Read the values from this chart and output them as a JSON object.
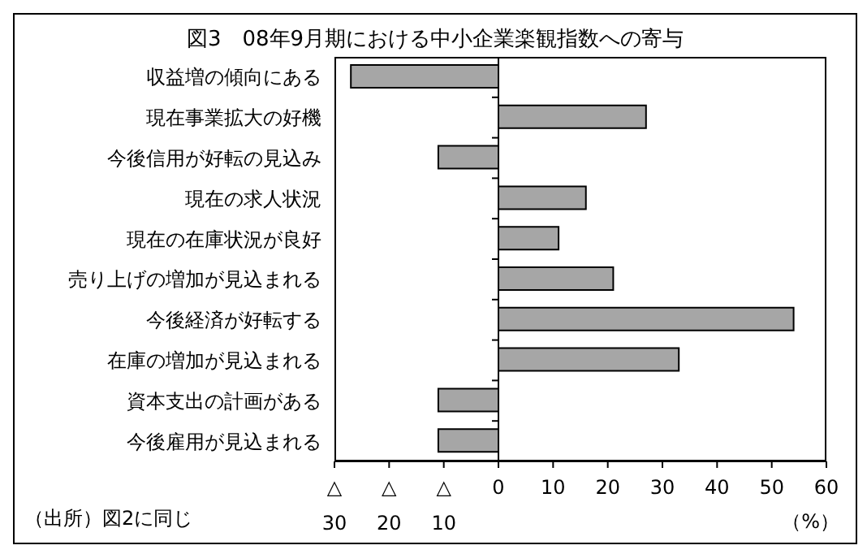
{
  "chart_data": {
    "type": "bar",
    "orientation": "horizontal",
    "title": "図3　08年9月期における中小企業楽観指数への寄与",
    "categories": [
      "収益増の傾向にある",
      "現在事業拡大の好機",
      "今後信用が好転の見込み",
      "現在の求人状況",
      "現在の在庫状況が良好",
      "売り上げの増加が見込まれる",
      "今後経済が好転する",
      "在庫の増加が見込まれる",
      "資本支出の計画がある",
      "今後雇用が見込まれる"
    ],
    "values": [
      -27,
      27,
      -11,
      16,
      11,
      21,
      54,
      33,
      -11,
      -11
    ],
    "color": "#a6a6a6",
    "xlim": [
      -30,
      60
    ],
    "xticks": [
      {
        "value": -30,
        "label": "△\n30"
      },
      {
        "value": -20,
        "label": "△\n20"
      },
      {
        "value": -10,
        "label": "△\n10"
      },
      0,
      10,
      20,
      30,
      40,
      50,
      60
    ],
    "xlabel": "（%）",
    "annotations": [
      "（出所）図2に同じ"
    ],
    "legend": false
  }
}
